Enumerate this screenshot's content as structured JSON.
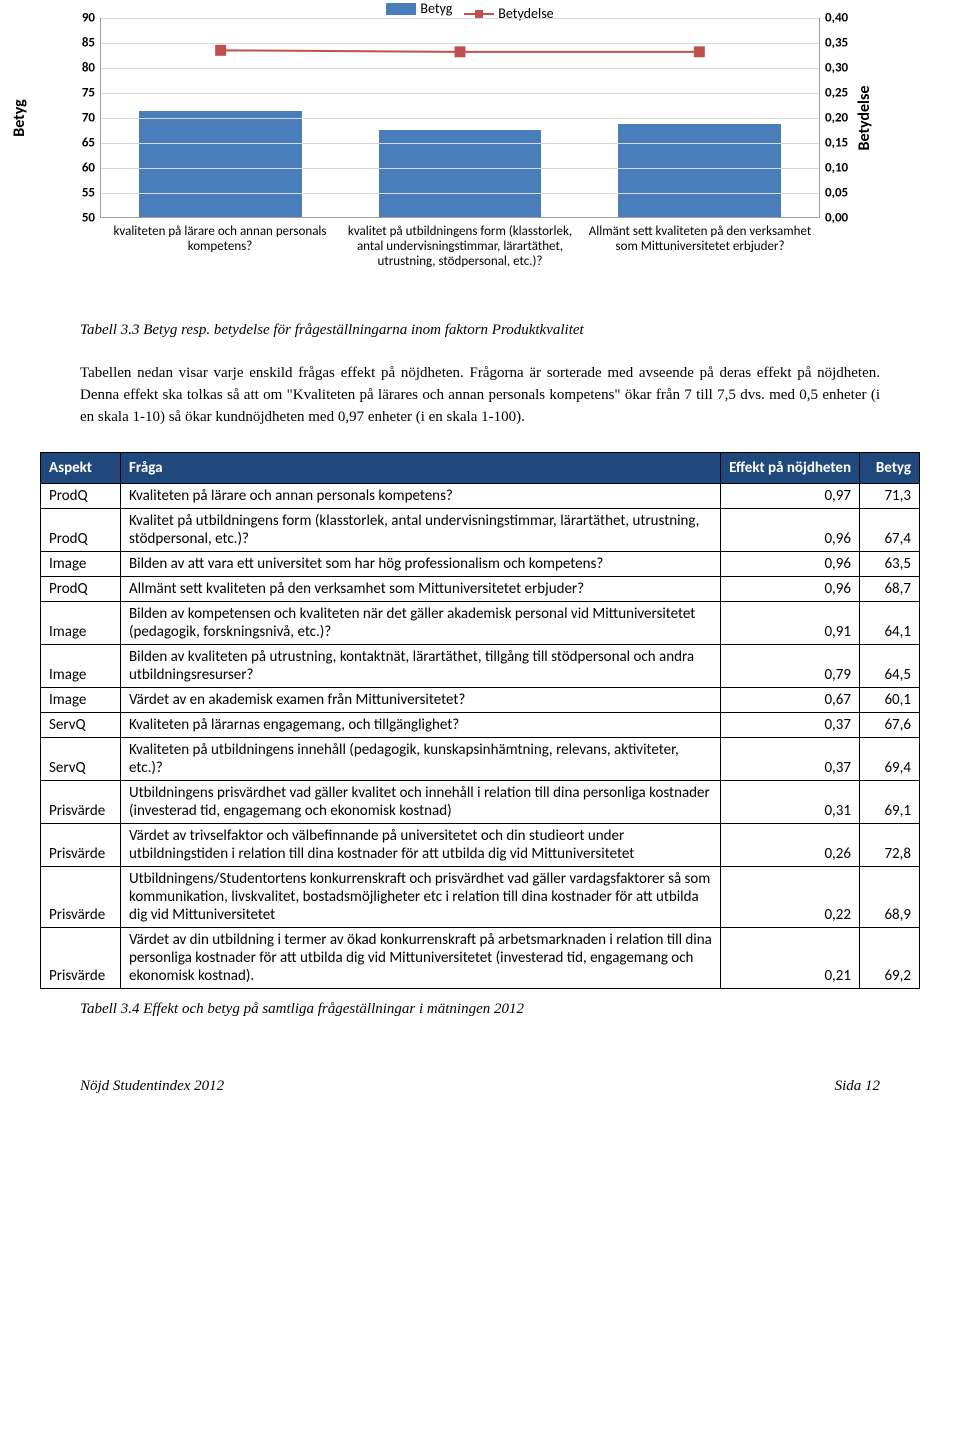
{
  "chart": {
    "type": "bar+line",
    "background_color": "#ffffff",
    "grid_color": "#d9d9d9",
    "bar_color": "#4a7ebb",
    "line_color": "#c0504d",
    "marker_color": "#c0504d",
    "marker_shape": "square",
    "font_size_tick": 13,
    "font_size_axis_label": 16,
    "axis_label_left": "Betyg",
    "axis_label_right": "Betydelse",
    "legend": [
      {
        "label": "Betyg",
        "type": "bar"
      },
      {
        "label": "Betydelse",
        "type": "line"
      }
    ],
    "y_left": {
      "min": 50,
      "max": 90,
      "step": 5,
      "ticks": [
        "50",
        "55",
        "60",
        "65",
        "70",
        "75",
        "80",
        "85",
        "90"
      ]
    },
    "y_right": {
      "min": 0,
      "max": 0.4,
      "step": 0.05,
      "ticks": [
        "0,00",
        "0,05",
        "0,10",
        "0,15",
        "0,20",
        "0,25",
        "0,30",
        "0,35",
        "0,40"
      ]
    },
    "categories": [
      "kvaliteten på lärare och annan personals kompetens?",
      "kvalitet på utbildningens form (klasstorlek, antal undervisningstimmar, lärartäthet, utrustning, stödpersonal, etc.)?",
      "Allmänt sett kvaliteten på den verksamhet som Mittuniversitetet erbjuder?"
    ],
    "bar_values": [
      71.3,
      67.4,
      68.7
    ],
    "line_values": [
      0.335,
      0.332,
      0.332
    ]
  },
  "caption1": "Tabell 3.3 Betyg resp. betydelse för frågeställningarna inom faktorn Produktkvalitet",
  "paragraph": "Tabellen nedan visar varje enskild frågas effekt på nöjdheten. Frågorna är sorterade med avseende på deras effekt på nöjdheten. Denna effekt ska tolkas så att om \"Kvaliteten på lärares och annan personals kompetens\" ökar från 7 till 7,5 dvs. med 0,5 enheter (i en skala 1-10) så ökar kundnöjdheten med 0,97 enheter (i en skala 1-100).",
  "table": {
    "header_bg": "#1f497d",
    "header_fg": "#ffffff",
    "columns": [
      "Aspekt",
      "Fråga",
      "Effekt på nöjdheten",
      "Betyg"
    ],
    "rows": [
      [
        "ProdQ",
        "Kvaliteten på lärare och annan personals kompetens?",
        "0,97",
        "71,3"
      ],
      [
        "ProdQ",
        "Kvalitet på utbildningens form (klasstorlek, antal undervisningstimmar, lärartäthet, utrustning, stödpersonal, etc.)?",
        "0,96",
        "67,4"
      ],
      [
        "Image",
        "Bilden av att vara ett universitet som har hög professionalism och kompetens?",
        "0,96",
        "63,5"
      ],
      [
        "ProdQ",
        "Allmänt sett kvaliteten på den verksamhet som Mittuniversitetet erbjuder?",
        "0,96",
        "68,7"
      ],
      [
        "Image",
        "Bilden av kompetensen och kvaliteten när det gäller akademisk personal vid Mittuniversitetet (pedagogik, forskningsnivå, etc.)?",
        "0,91",
        "64,1"
      ],
      [
        "Image",
        "Bilden av kvaliteten på utrustning, kontaktnät, lärartäthet, tillgång till stödpersonal och andra utbildningsresurser?",
        "0,79",
        "64,5"
      ],
      [
        "Image",
        "Värdet av en akademisk examen från Mittuniversitetet?",
        "0,67",
        "60,1"
      ],
      [
        "ServQ",
        "Kvaliteten på lärarnas engagemang, och tillgänglighet?",
        "0,37",
        "67,6"
      ],
      [
        "ServQ",
        "Kvaliteten på utbildningens innehåll (pedagogik, kunskapsinhämtning, relevans, aktiviteter, etc.)?",
        "0,37",
        "69,4"
      ],
      [
        "Prisvärde",
        "Utbildningens prisvärdhet vad gäller kvalitet och innehåll i relation till dina personliga kostnader (investerad tid, engagemang och ekonomisk kostnad)",
        "0,31",
        "69,1"
      ],
      [
        "Prisvärde",
        "Värdet av trivselfaktor och välbefinnande på universitetet och din studieort under utbildningstiden i relation till dina kostnader för att utbilda dig vid Mittuniversitetet",
        "0,26",
        "72,8"
      ],
      [
        "Prisvärde",
        "Utbildningens/Studentortens konkurrenskraft och prisvärdhet vad gäller vardagsfaktorer så som kommunikation, livskvalitet, bostadsmöjligheter etc i relation till dina kostnader för att utbilda dig vid Mittuniversitetet",
        "0,22",
        "68,9"
      ],
      [
        "Prisvärde",
        "Värdet av din utbildning i termer av ökad konkurrenskraft på arbetsmarknaden i relation till dina personliga kostnader för att utbilda dig vid Mittuniversitetet (investerad tid, engagemang och ekonomisk kostnad).",
        "0,21",
        "69,2"
      ]
    ]
  },
  "caption2": "Tabell 3.4 Effekt och betyg på samtliga frågeställningar i mätningen 2012",
  "footer": {
    "left": "Nöjd Studentindex 2012",
    "right": "Sida 12"
  }
}
